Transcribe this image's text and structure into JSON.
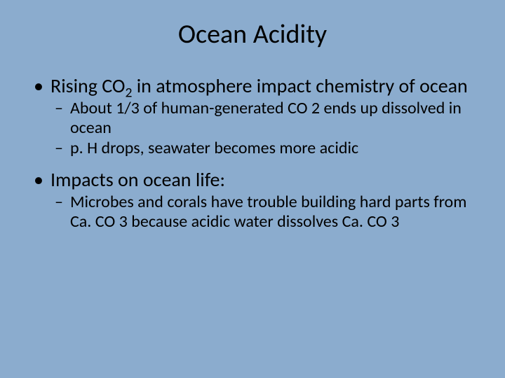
{
  "background_color": "#8bacce",
  "text_color": "#000000",
  "font_family": "Calibri",
  "title": {
    "text": "Ocean Acidity",
    "fontsize": 38
  },
  "bullets": [
    {
      "level": 1,
      "html": "Rising CO<sub>2</sub> in atmosphere impact chemistry of ocean",
      "fontsize": 28,
      "children": [
        {
          "level": 2,
          "text": "About 1/3 of human-generated CO 2 ends up dissolved in ocean",
          "fontsize": 24
        },
        {
          "level": 2,
          "text": "p. H drops, seawater becomes more acidic",
          "fontsize": 24
        }
      ]
    },
    {
      "level": 1,
      "text": "Impacts on ocean life:",
      "fontsize": 28,
      "children": [
        {
          "level": 2,
          "text": "Microbes and corals have trouble building hard parts from Ca. CO 3 because acidic water dissolves Ca. CO 3",
          "fontsize": 24
        }
      ]
    }
  ]
}
